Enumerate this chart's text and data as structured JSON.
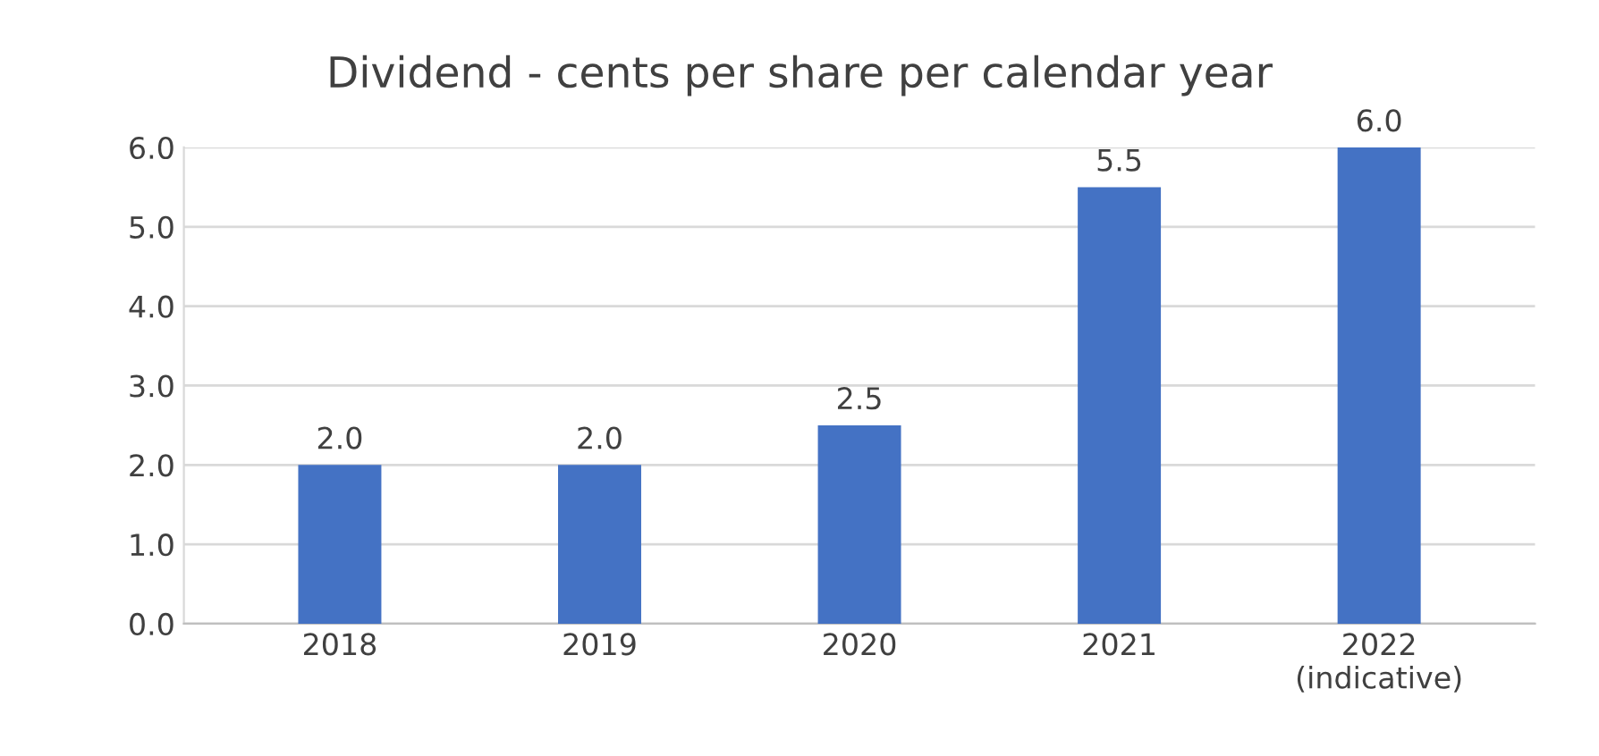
{
  "chart_data": {
    "type": "bar",
    "title": "Dividend - cents per share per calendar year",
    "categories": [
      "2018",
      "2019",
      "2020",
      "2021",
      "2022\n(indicative)"
    ],
    "values": [
      2.0,
      2.0,
      2.5,
      5.5,
      6.0
    ],
    "value_labels": [
      "2.0",
      "2.0",
      "2.5",
      "5.5",
      "6.0"
    ],
    "color": "#4472c4",
    "ylim": [
      0,
      6
    ],
    "yticks": [
      {
        "value": 0,
        "label": "0.0"
      },
      {
        "value": 1,
        "label": "1.0"
      },
      {
        "value": 2,
        "label": "2.0"
      },
      {
        "value": 3,
        "label": "3.0"
      },
      {
        "value": 4,
        "label": "4.0"
      },
      {
        "value": 5,
        "label": "5.0"
      },
      {
        "value": 6,
        "label": "6.0"
      }
    ],
    "grid": "y"
  }
}
